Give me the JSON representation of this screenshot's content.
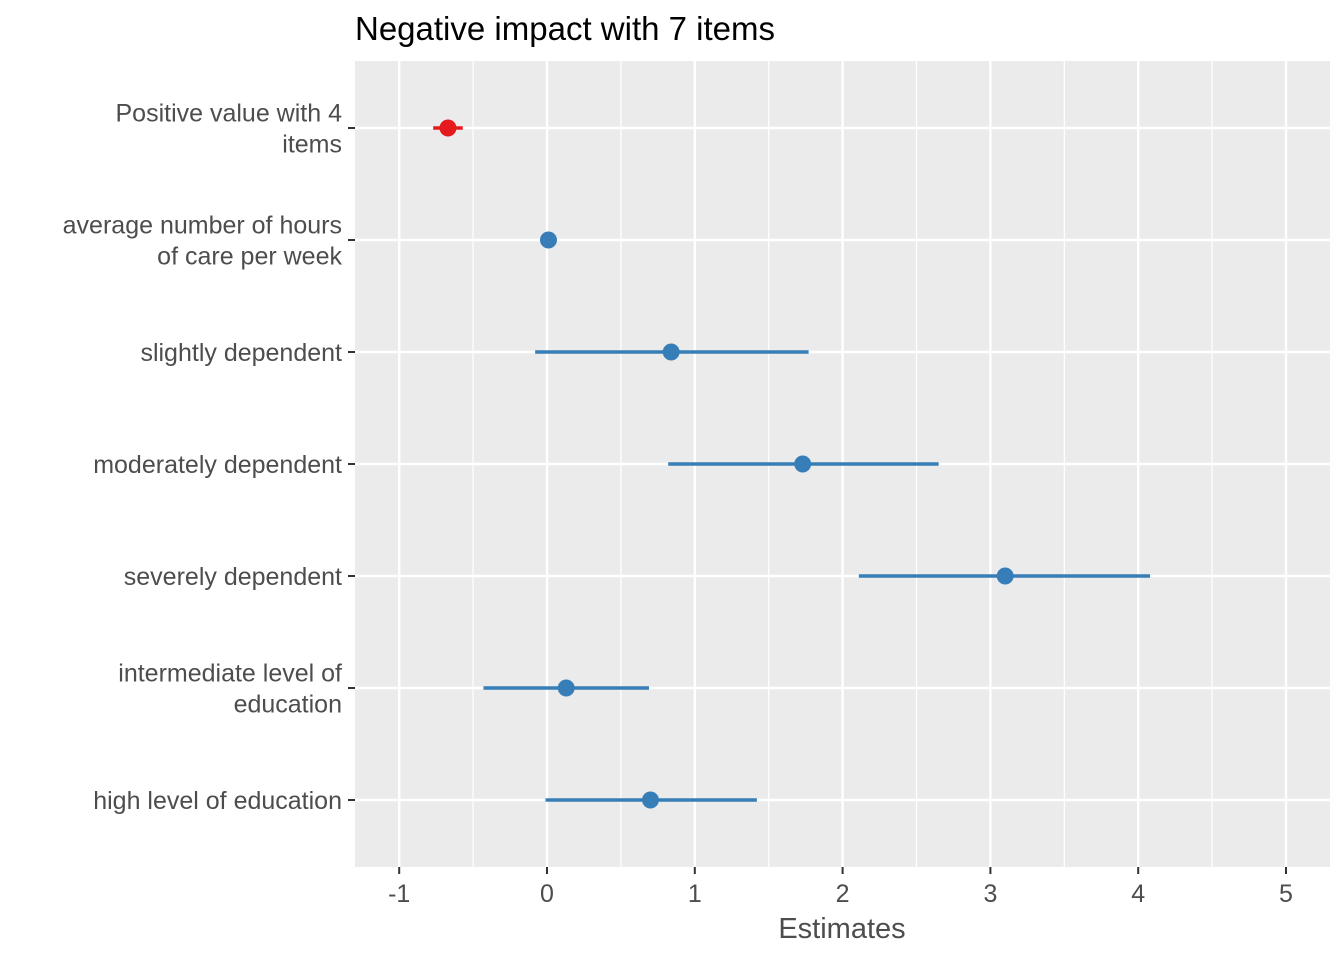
{
  "chart_data": {
    "type": "scatter",
    "subtype": "coefficient-plot",
    "title": "Negative impact with 7 items",
    "xlabel": "Estimates",
    "ylabel": "",
    "xlim": [
      -1.3,
      5.3
    ],
    "xticks": [
      "-1",
      "0",
      "1",
      "2",
      "3",
      "4",
      "5"
    ],
    "grid": true,
    "legend": "none",
    "colors": {
      "positive": "#377eb8",
      "negative": "#e41a1c",
      "panel": "#ebebeb",
      "grid": "#ffffff",
      "tick": "#333333"
    },
    "terms": [
      {
        "label": [
          "Positive value with 4",
          "items"
        ],
        "estimate": -0.67,
        "ci_low": -0.77,
        "ci_high": -0.57,
        "sign": "negative"
      },
      {
        "label": [
          "average number of hours",
          "of care per week"
        ],
        "estimate": 0.01,
        "ci_low": 0.0,
        "ci_high": 0.02,
        "sign": "positive"
      },
      {
        "label": [
          "slightly dependent"
        ],
        "estimate": 0.84,
        "ci_low": -0.08,
        "ci_high": 1.77,
        "sign": "positive"
      },
      {
        "label": [
          "moderately dependent"
        ],
        "estimate": 1.73,
        "ci_low": 0.82,
        "ci_high": 2.65,
        "sign": "positive"
      },
      {
        "label": [
          "severely dependent"
        ],
        "estimate": 3.1,
        "ci_low": 2.11,
        "ci_high": 4.08,
        "sign": "positive"
      },
      {
        "label": [
          "intermediate level of",
          "education"
        ],
        "estimate": 0.13,
        "ci_low": -0.43,
        "ci_high": 0.69,
        "sign": "positive"
      },
      {
        "label": [
          "high level of education"
        ],
        "estimate": 0.7,
        "ci_low": -0.01,
        "ci_high": 1.42,
        "sign": "positive"
      }
    ]
  }
}
